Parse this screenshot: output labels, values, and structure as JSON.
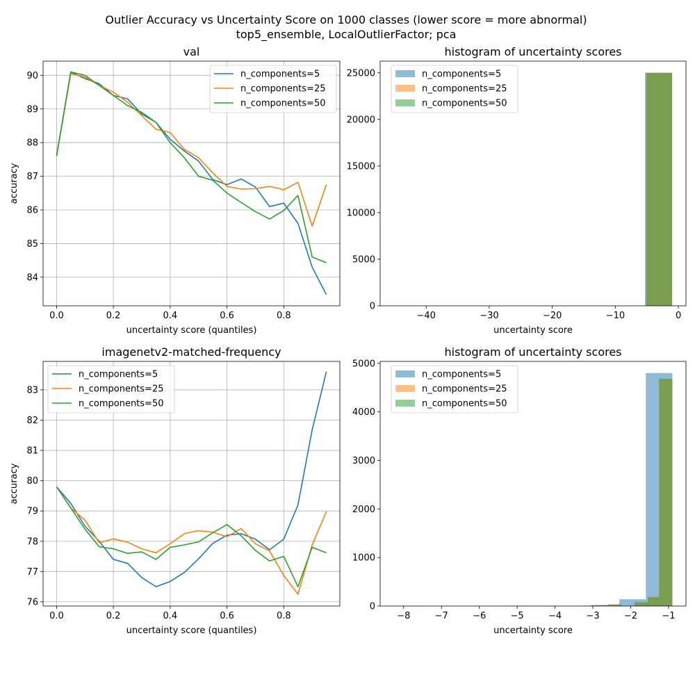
{
  "figure": {
    "title_line1": "Outlier Accuracy vs Uncertainty Score on 1000 classes (lower score = more abnormal)",
    "title_line2": "top5_ensemble, LocalOutlierFactor; pca"
  },
  "colors": {
    "n_components=5": "#1f77b4",
    "n_components=25": "#ff7f0e",
    "n_components=50": "#2ca02c"
  },
  "chart_data": [
    {
      "id": "val-line",
      "type": "line",
      "title": "val",
      "xlabel": "uncertainty score (quantiles)",
      "ylabel": "accuracy",
      "xlim": [
        -0.0475,
        0.9975
      ],
      "ylim": [
        83.15,
        90.42
      ],
      "xticks": [
        0.0,
        0.2,
        0.4,
        0.6,
        0.8
      ],
      "xtick_labels": [
        "0.0",
        "0.2",
        "0.4",
        "0.6",
        "0.8"
      ],
      "yticks": [
        84,
        85,
        86,
        87,
        88,
        89,
        90
      ],
      "ytick_labels": [
        "84",
        "85",
        "86",
        "87",
        "88",
        "89",
        "90"
      ],
      "grid": true,
      "legend": "upper right",
      "x": [
        0.0,
        0.05,
        0.1,
        0.15,
        0.2,
        0.25,
        0.3,
        0.35,
        0.4,
        0.45,
        0.5,
        0.55,
        0.6,
        0.65,
        0.7,
        0.75,
        0.8,
        0.85,
        0.9,
        0.95
      ],
      "series": [
        {
          "name": "n_components=5",
          "values": [
            87.6,
            90.1,
            89.9,
            89.75,
            89.4,
            89.3,
            88.85,
            88.6,
            88.1,
            87.75,
            87.45,
            86.9,
            86.75,
            86.92,
            86.68,
            86.1,
            86.2,
            85.6,
            84.3,
            83.48
          ]
        },
        {
          "name": "n_components=25",
          "values": [
            87.6,
            90.05,
            89.95,
            89.7,
            89.5,
            89.2,
            88.8,
            88.4,
            88.3,
            87.8,
            87.55,
            87.1,
            86.7,
            86.62,
            86.63,
            86.7,
            86.6,
            86.82,
            85.52,
            86.75
          ]
        },
        {
          "name": "n_components=50",
          "values": [
            87.6,
            90.1,
            90.0,
            89.7,
            89.4,
            89.1,
            88.9,
            88.6,
            88.0,
            87.55,
            87.0,
            86.88,
            86.5,
            86.22,
            85.95,
            85.73,
            85.98,
            86.43,
            84.6,
            84.43
          ]
        }
      ]
    },
    {
      "id": "val-hist",
      "type": "bar",
      "title": "histogram of uncertainty scores",
      "xlabel": "uncertainty score",
      "ylabel": "",
      "xlim": [
        -47.3,
        1.2
      ],
      "ylim": [
        0,
        26250
      ],
      "xticks": [
        -40,
        -30,
        -20,
        -10,
        0
      ],
      "xtick_labels": [
        "−40",
        "−30",
        "−20",
        "−10",
        "0"
      ],
      "yticks": [
        0,
        5000,
        10000,
        15000,
        20000,
        25000
      ],
      "ytick_labels": [
        "0",
        "5000",
        "10000",
        "15000",
        "20000",
        "25000"
      ],
      "grid": false,
      "legend": "upper left",
      "series": [
        {
          "name": "n_components=5",
          "bins": [
            [
              -5.3,
              -1.0,
              25000
            ]
          ]
        },
        {
          "name": "n_components=25",
          "bins": [
            [
              -5.1,
              -1.0,
              25000
            ]
          ]
        },
        {
          "name": "n_components=50",
          "bins": [
            [
              -5.1,
              -1.0,
              25000
            ]
          ]
        }
      ]
    },
    {
      "id": "v2-line",
      "type": "line",
      "title": "imagenetv2-matched-frequency",
      "xlabel": "uncertainty score (quantiles)",
      "ylabel": "accuracy",
      "xlim": [
        -0.0475,
        0.9975
      ],
      "ylim": [
        75.86,
        83.94
      ],
      "xticks": [
        0.0,
        0.2,
        0.4,
        0.6,
        0.8
      ],
      "xtick_labels": [
        "0.0",
        "0.2",
        "0.4",
        "0.6",
        "0.8"
      ],
      "yticks": [
        76,
        77,
        78,
        79,
        80,
        81,
        82,
        83
      ],
      "ytick_labels": [
        "76",
        "77",
        "78",
        "79",
        "80",
        "81",
        "82",
        "83"
      ],
      "grid": true,
      "legend": "upper left",
      "x": [
        0.0,
        0.05,
        0.1,
        0.15,
        0.2,
        0.25,
        0.3,
        0.35,
        0.4,
        0.45,
        0.5,
        0.55,
        0.6,
        0.65,
        0.7,
        0.75,
        0.8,
        0.85,
        0.9,
        0.95
      ],
      "series": [
        {
          "name": "n_components=5",
          "values": [
            79.8,
            79.25,
            78.5,
            78.0,
            77.4,
            77.27,
            76.8,
            76.5,
            76.67,
            76.97,
            77.42,
            77.93,
            78.2,
            78.25,
            78.07,
            77.72,
            78.07,
            79.2,
            81.68,
            83.6
          ]
        },
        {
          "name": "n_components=25",
          "values": [
            79.8,
            79.1,
            78.7,
            77.95,
            78.08,
            77.97,
            77.75,
            77.62,
            77.92,
            78.25,
            78.35,
            78.3,
            78.15,
            78.42,
            77.92,
            77.68,
            76.87,
            76.25,
            77.88,
            78.98
          ]
        },
        {
          "name": "n_components=50",
          "values": [
            79.8,
            79.1,
            78.4,
            77.82,
            77.75,
            77.6,
            77.65,
            77.4,
            77.8,
            77.88,
            77.98,
            78.28,
            78.55,
            78.18,
            77.7,
            77.35,
            77.5,
            76.5,
            77.8,
            77.62
          ]
        }
      ]
    },
    {
      "id": "v2-hist",
      "type": "bar",
      "title": "histogram of uncertainty scores",
      "xlabel": "uncertainty score",
      "ylabel": "",
      "xlim": [
        -8.62,
        -0.54
      ],
      "ylim": [
        0,
        5040
      ],
      "xticks": [
        -8,
        -7,
        -6,
        -5,
        -4,
        -3,
        -2,
        -1
      ],
      "xtick_labels": [
        "−8",
        "−7",
        "−6",
        "−5",
        "−4",
        "−3",
        "−2",
        "−1"
      ],
      "yticks": [
        0,
        1000,
        2000,
        3000,
        4000,
        5000
      ],
      "ytick_labels": [
        "0",
        "1000",
        "2000",
        "3000",
        "4000",
        "5000"
      ],
      "grid": false,
      "legend": "upper left",
      "series": [
        {
          "name": "n_components=5",
          "bins": [
            [
              -8.3,
              -7.55,
              4
            ],
            [
              -5.3,
              -4.55,
              3
            ],
            [
              -3.05,
              -2.3,
              20
            ],
            [
              -2.3,
              -1.6,
              140
            ],
            [
              -1.6,
              -0.9,
              4800
            ]
          ]
        },
        {
          "name": "n_components=25",
          "bins": [
            [
              -4.4,
              -4.05,
              3
            ],
            [
              -3.3,
              -2.95,
              5
            ],
            [
              -2.95,
              -2.6,
              15
            ],
            [
              -2.6,
              -2.25,
              35
            ],
            [
              -1.9,
              -1.55,
              75
            ],
            [
              -1.55,
              -1.25,
              190
            ],
            [
              -1.25,
              -0.9,
              4680
            ]
          ]
        },
        {
          "name": "n_components=50",
          "bins": [
            [
              -4.4,
              -4.05,
              3
            ],
            [
              -3.3,
              -2.95,
              5
            ],
            [
              -2.95,
              -2.6,
              15
            ],
            [
              -2.6,
              -2.25,
              35
            ],
            [
              -1.9,
              -1.55,
              80
            ],
            [
              -1.55,
              -1.25,
              180
            ],
            [
              -1.25,
              -0.9,
              4680
            ]
          ]
        }
      ]
    }
  ]
}
